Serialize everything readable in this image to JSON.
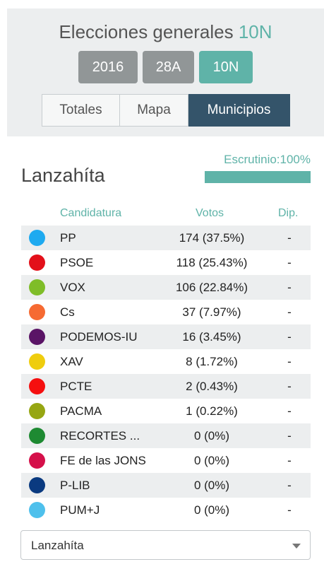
{
  "header": {
    "title_main": "Elecciones generales",
    "title_highlight": "10N",
    "years": [
      {
        "label": "2016",
        "active": false
      },
      {
        "label": "28A",
        "active": false
      },
      {
        "label": "10N",
        "active": true
      }
    ],
    "tabs": [
      {
        "label": "Totales",
        "active": false
      },
      {
        "label": "Mapa",
        "active": false
      },
      {
        "label": "Municipios",
        "active": true
      }
    ]
  },
  "municipality": "Lanzahíta",
  "scrutiny": {
    "label": "Escrutinio:100%",
    "percent": 100
  },
  "table": {
    "headers": {
      "party": "Candidatura",
      "votes": "Votos",
      "seats": "Dip."
    },
    "rows": [
      {
        "party": "PP",
        "votes": "174 (37.5%)",
        "seats": "-",
        "color": "#1eaaf0"
      },
      {
        "party": "PSOE",
        "votes": "118 (25.43%)",
        "seats": "-",
        "color": "#e3101a"
      },
      {
        "party": "VOX",
        "votes": "106 (22.84%)",
        "seats": "-",
        "color": "#7fbd28"
      },
      {
        "party": "Cs",
        "votes": "37 (7.97%)",
        "seats": "-",
        "color": "#f66a32"
      },
      {
        "party": "PODEMOS-IU",
        "votes": "16 (3.45%)",
        "seats": "-",
        "color": "#5a1466"
      },
      {
        "party": "XAV",
        "votes": "8 (1.72%)",
        "seats": "-",
        "color": "#efcd0e"
      },
      {
        "party": "PCTE",
        "votes": "2 (0.43%)",
        "seats": "-",
        "color": "#f50f0f"
      },
      {
        "party": "PACMA",
        "votes": "1 (0.22%)",
        "seats": "-",
        "color": "#96a612"
      },
      {
        "party": "RECORTES ...",
        "votes": "0 (0%)",
        "seats": "-",
        "color": "#1e8a32"
      },
      {
        "party": "FE de las JONS",
        "votes": "0 (0%)",
        "seats": "-",
        "color": "#d5104a"
      },
      {
        "party": "P-LIB",
        "votes": "0 (0%)",
        "seats": "-",
        "color": "#0a3a80"
      },
      {
        "party": "PUM+J",
        "votes": "0 (0%)",
        "seats": "-",
        "color": "#4ec0ec"
      }
    ]
  },
  "select": {
    "value": "Lanzahíta"
  }
}
